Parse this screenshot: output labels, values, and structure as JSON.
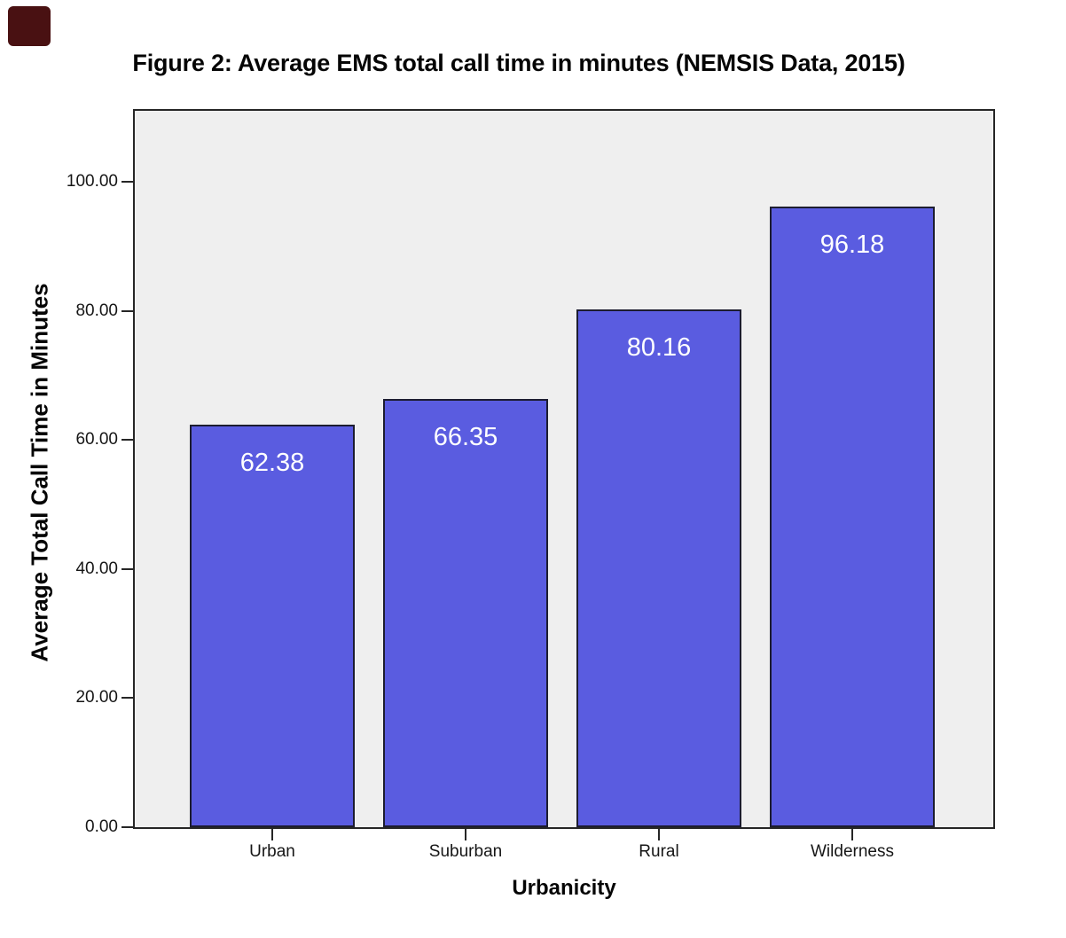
{
  "chart_data": {
    "type": "bar",
    "title": "Figure 2: Average EMS total call time in minutes (NEMSIS Data, 2015)",
    "xlabel": "Urbanicity",
    "ylabel": "Average Total Call Time in Minutes",
    "categories": [
      "Urban",
      "Suburban",
      "Rural",
      "Wilderness"
    ],
    "values": [
      62.38,
      66.35,
      80.16,
      96.18
    ],
    "value_labels": [
      "62.38",
      "66.35",
      "80.16",
      "96.18"
    ],
    "yticks": [
      {
        "label": "0.00",
        "value": 0
      },
      {
        "label": "20.00",
        "value": 20
      },
      {
        "label": "40.00",
        "value": 40
      },
      {
        "label": "60.00",
        "value": 60
      },
      {
        "label": "80.00",
        "value": 80
      },
      {
        "label": "100.00",
        "value": 100
      }
    ],
    "ylim": [
      0,
      111
    ],
    "grid": false,
    "legend": "none",
    "colors": {
      "bar_fill": "#5a5ce0",
      "bar_border": "#1c1c30",
      "plot_background": "#efefef",
      "plot_border": "#262626",
      "bar_value_text": "#ffffff",
      "axis_text": "#161616",
      "title_text": "#050505",
      "page_background": "#ffffff",
      "corner_marker": "#491112"
    }
  }
}
